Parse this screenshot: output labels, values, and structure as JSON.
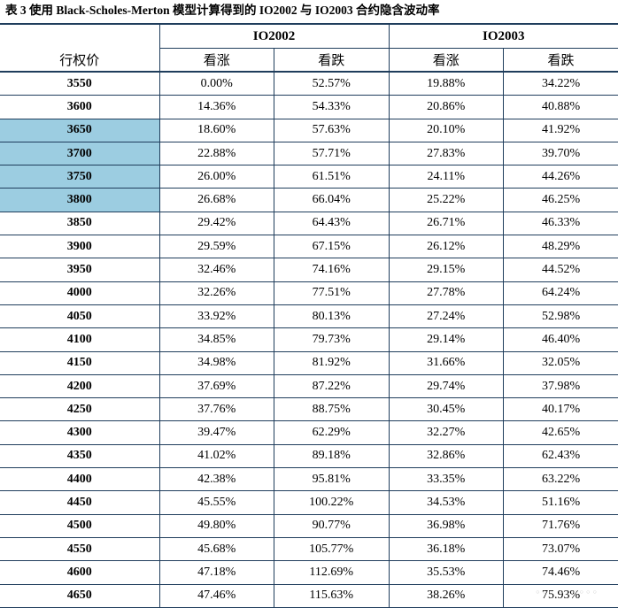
{
  "caption": "表 3 使用 Black-Scholes-Merton 模型计算得到的 IO2002 与 IO2003 合约隐含波动率",
  "header": {
    "strike_label": "行权价",
    "group1": "IO2002",
    "group2": "IO2003",
    "call_label": "看涨",
    "put_label": "看跌"
  },
  "highlight_color": "#9ccde1",
  "rows": [
    {
      "strike": "3550",
      "io2002_call": "0.00%",
      "io2002_put": "52.57%",
      "io2003_call": "19.88%",
      "io2003_put": "34.22%",
      "highlighted": false
    },
    {
      "strike": "3600",
      "io2002_call": "14.36%",
      "io2002_put": "54.33%",
      "io2003_call": "20.86%",
      "io2003_put": "40.88%",
      "highlighted": false
    },
    {
      "strike": "3650",
      "io2002_call": "18.60%",
      "io2002_put": "57.63%",
      "io2003_call": "20.10%",
      "io2003_put": "41.92%",
      "highlighted": true
    },
    {
      "strike": "3700",
      "io2002_call": "22.88%",
      "io2002_put": "57.71%",
      "io2003_call": "27.83%",
      "io2003_put": "39.70%",
      "highlighted": true
    },
    {
      "strike": "3750",
      "io2002_call": "26.00%",
      "io2002_put": "61.51%",
      "io2003_call": "24.11%",
      "io2003_put": "44.26%",
      "highlighted": true
    },
    {
      "strike": "3800",
      "io2002_call": "26.68%",
      "io2002_put": "66.04%",
      "io2003_call": "25.22%",
      "io2003_put": "46.25%",
      "highlighted": true
    },
    {
      "strike": "3850",
      "io2002_call": "29.42%",
      "io2002_put": "64.43%",
      "io2003_call": "26.71%",
      "io2003_put": "46.33%",
      "highlighted": false
    },
    {
      "strike": "3900",
      "io2002_call": "29.59%",
      "io2002_put": "67.15%",
      "io2003_call": "26.12%",
      "io2003_put": "48.29%",
      "highlighted": false
    },
    {
      "strike": "3950",
      "io2002_call": "32.46%",
      "io2002_put": "74.16%",
      "io2003_call": "29.15%",
      "io2003_put": "44.52%",
      "highlighted": false
    },
    {
      "strike": "4000",
      "io2002_call": "32.26%",
      "io2002_put": "77.51%",
      "io2003_call": "27.78%",
      "io2003_put": "64.24%",
      "highlighted": false
    },
    {
      "strike": "4050",
      "io2002_call": "33.92%",
      "io2002_put": "80.13%",
      "io2003_call": "27.24%",
      "io2003_put": "52.98%",
      "highlighted": false
    },
    {
      "strike": "4100",
      "io2002_call": "34.85%",
      "io2002_put": "79.73%",
      "io2003_call": "29.14%",
      "io2003_put": "46.40%",
      "highlighted": false
    },
    {
      "strike": "4150",
      "io2002_call": "34.98%",
      "io2002_put": "81.92%",
      "io2003_call": "31.66%",
      "io2003_put": "32.05%",
      "highlighted": false
    },
    {
      "strike": "4200",
      "io2002_call": "37.69%",
      "io2002_put": "87.22%",
      "io2003_call": "29.74%",
      "io2003_put": "37.98%",
      "highlighted": false
    },
    {
      "strike": "4250",
      "io2002_call": "37.76%",
      "io2002_put": "88.75%",
      "io2003_call": "30.45%",
      "io2003_put": "40.17%",
      "highlighted": false
    },
    {
      "strike": "4300",
      "io2002_call": "39.47%",
      "io2002_put": "62.29%",
      "io2003_call": "32.27%",
      "io2003_put": "42.65%",
      "highlighted": false
    },
    {
      "strike": "4350",
      "io2002_call": "41.02%",
      "io2002_put": "89.18%",
      "io2003_call": "32.86%",
      "io2003_put": "62.43%",
      "highlighted": false
    },
    {
      "strike": "4400",
      "io2002_call": "42.38%",
      "io2002_put": "95.81%",
      "io2003_call": "33.35%",
      "io2003_put": "63.22%",
      "highlighted": false
    },
    {
      "strike": "4450",
      "io2002_call": "45.55%",
      "io2002_put": "100.22%",
      "io2003_call": "34.53%",
      "io2003_put": "51.16%",
      "highlighted": false
    },
    {
      "strike": "4500",
      "io2002_call": "49.80%",
      "io2002_put": "90.77%",
      "io2003_call": "36.98%",
      "io2003_put": "71.76%",
      "highlighted": false
    },
    {
      "strike": "4550",
      "io2002_call": "45.68%",
      "io2002_put": "105.77%",
      "io2003_call": "36.18%",
      "io2003_put": "73.07%",
      "highlighted": false
    },
    {
      "strike": "4600",
      "io2002_call": "47.18%",
      "io2002_put": "112.69%",
      "io2003_call": "35.53%",
      "io2003_put": "74.46%",
      "highlighted": false
    },
    {
      "strike": "4650",
      "io2002_call": "47.46%",
      "io2002_put": "115.63%",
      "io2003_call": "38.26%",
      "io2003_put": "75.93%",
      "highlighted": false
    }
  ]
}
